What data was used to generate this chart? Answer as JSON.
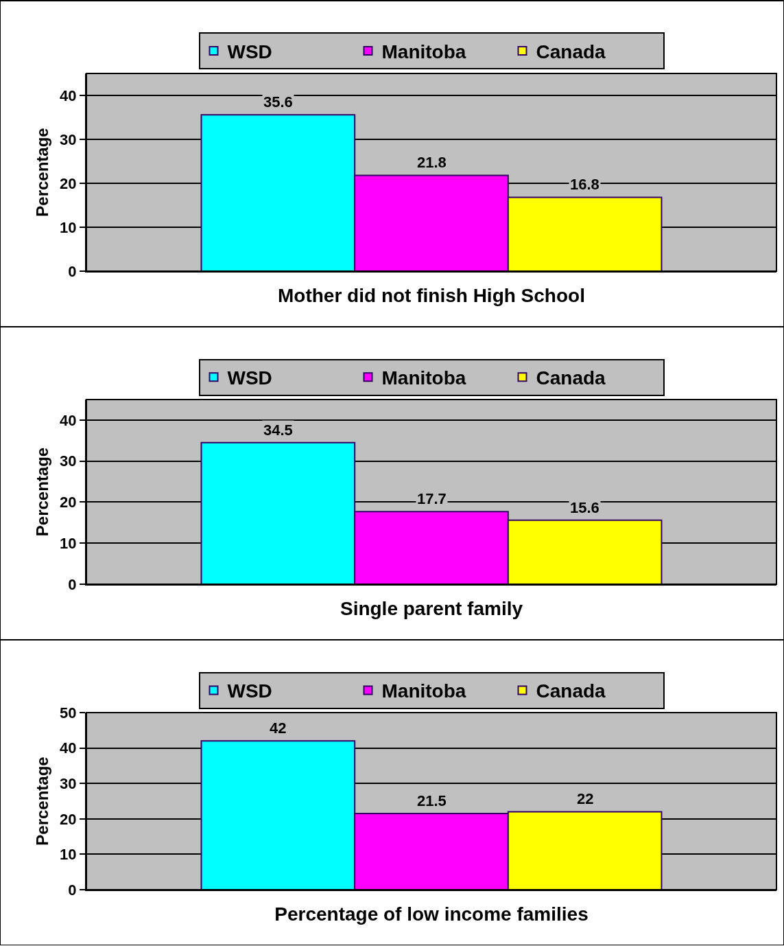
{
  "chart_data": [
    {
      "type": "bar",
      "xlabel": "Mother did not finish High School",
      "ylabel": "Percentage",
      "categories": [
        null
      ],
      "series": [
        {
          "name": "WSD",
          "color": "#00ffff",
          "values": [
            35.6
          ]
        },
        {
          "name": "Manitoba",
          "color": "#ff00ff",
          "values": [
            21.8
          ]
        },
        {
          "name": "Canada",
          "color": "#ffff00",
          "values": [
            16.8
          ]
        }
      ],
      "ylim": [
        0,
        45
      ],
      "yticks": [
        0,
        10,
        20,
        30,
        40
      ],
      "grid": "y",
      "legend": "top",
      "data_labels": true
    },
    {
      "type": "bar",
      "xlabel": "Single parent family",
      "ylabel": "Percentage",
      "categories": [
        null
      ],
      "series": [
        {
          "name": "WSD",
          "color": "#00ffff",
          "values": [
            34.5
          ]
        },
        {
          "name": "Manitoba",
          "color": "#ff00ff",
          "values": [
            17.7
          ]
        },
        {
          "name": "Canada",
          "color": "#ffff00",
          "values": [
            15.6
          ]
        }
      ],
      "ylim": [
        0,
        45
      ],
      "yticks": [
        0,
        10,
        20,
        30,
        40
      ],
      "grid": "y",
      "legend": "top",
      "data_labels": true
    },
    {
      "type": "bar",
      "xlabel": "Percentage of low income families",
      "ylabel": "Percentage",
      "categories": [
        null
      ],
      "series": [
        {
          "name": "WSD",
          "color": "#00ffff",
          "values": [
            42
          ]
        },
        {
          "name": "Manitoba",
          "color": "#ff00ff",
          "values": [
            21.5
          ]
        },
        {
          "name": "Canada",
          "color": "#ffff00",
          "values": [
            22
          ]
        }
      ],
      "ylim": [
        0,
        50
      ],
      "yticks": [
        0,
        10,
        20,
        30,
        40,
        50
      ],
      "grid": "y",
      "legend": "top",
      "data_labels": true
    }
  ]
}
